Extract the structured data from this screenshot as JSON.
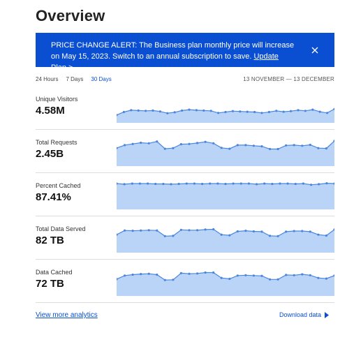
{
  "page": {
    "title": "Overview"
  },
  "alert": {
    "text": "PRICE CHANGE ALERT: The Business plan monthly price will increase on May 15, 2023. Switch to an annual subscription to save. ",
    "link_label": "Update Plan >",
    "close_icon": "close-icon"
  },
  "range_tabs": [
    {
      "label": "24 Hours",
      "active": false
    },
    {
      "label": "7 Days",
      "active": false
    },
    {
      "label": "30 Days",
      "active": true
    }
  ],
  "date_range": "13 NOVEMBER — 13 DECEMBER",
  "metrics": [
    {
      "label": "Unique Visitors",
      "value": "4.58M"
    },
    {
      "label": "Total Requests",
      "value": "2.45B"
    },
    {
      "label": "Percent Cached",
      "value": "87.41%"
    },
    {
      "label": "Total Data Served",
      "value": "82 TB"
    },
    {
      "label": "Data Cached",
      "value": "72 TB"
    }
  ],
  "chart_data": [
    {
      "type": "area",
      "name": "Unique Visitors",
      "values": [
        0.26,
        0.36,
        0.42,
        0.41,
        0.4,
        0.41,
        0.38,
        0.32,
        0.35,
        0.41,
        0.44,
        0.42,
        0.41,
        0.4,
        0.33,
        0.36,
        0.39,
        0.38,
        0.37,
        0.36,
        0.33,
        0.36,
        0.4,
        0.37,
        0.39,
        0.42,
        0.4,
        0.44,
        0.37,
        0.33,
        0.46
      ]
    },
    {
      "type": "area",
      "name": "Total Requests",
      "values": [
        0.6,
        0.7,
        0.74,
        0.78,
        0.76,
        0.82,
        0.58,
        0.6,
        0.73,
        0.74,
        0.77,
        0.81,
        0.76,
        0.61,
        0.58,
        0.7,
        0.7,
        0.68,
        0.66,
        0.57,
        0.57,
        0.69,
        0.7,
        0.68,
        0.71,
        0.6,
        0.59,
        0.84
      ]
    },
    {
      "type": "area",
      "name": "Percent Cached",
      "values": [
        0.86,
        0.84,
        0.86,
        0.86,
        0.86,
        0.85,
        0.85,
        0.84,
        0.85,
        0.86,
        0.86,
        0.85,
        0.86,
        0.86,
        0.85,
        0.86,
        0.86,
        0.86,
        0.84,
        0.86,
        0.85,
        0.86,
        0.86,
        0.85,
        0.86,
        0.82,
        0.84,
        0.87,
        0.86
      ]
    },
    {
      "type": "area",
      "name": "Total Data Served",
      "values": [
        0.6,
        0.74,
        0.73,
        0.74,
        0.75,
        0.74,
        0.55,
        0.56,
        0.76,
        0.75,
        0.75,
        0.77,
        0.78,
        0.6,
        0.58,
        0.71,
        0.73,
        0.71,
        0.7,
        0.56,
        0.55,
        0.7,
        0.72,
        0.72,
        0.7,
        0.6,
        0.57,
        0.77
      ]
    },
    {
      "type": "area",
      "name": "Data Cached",
      "values": [
        0.56,
        0.68,
        0.71,
        0.73,
        0.74,
        0.71,
        0.53,
        0.54,
        0.76,
        0.74,
        0.75,
        0.78,
        0.78,
        0.6,
        0.57,
        0.68,
        0.69,
        0.68,
        0.67,
        0.55,
        0.55,
        0.7,
        0.69,
        0.72,
        0.69,
        0.6,
        0.58,
        0.68
      ]
    }
  ],
  "footer": {
    "view_more": "View more analytics",
    "download": "Download data"
  },
  "colors": {
    "accent": "#0a4fd1",
    "chart_fill": "#b9d4f6",
    "chart_line": "#4a86e0"
  }
}
